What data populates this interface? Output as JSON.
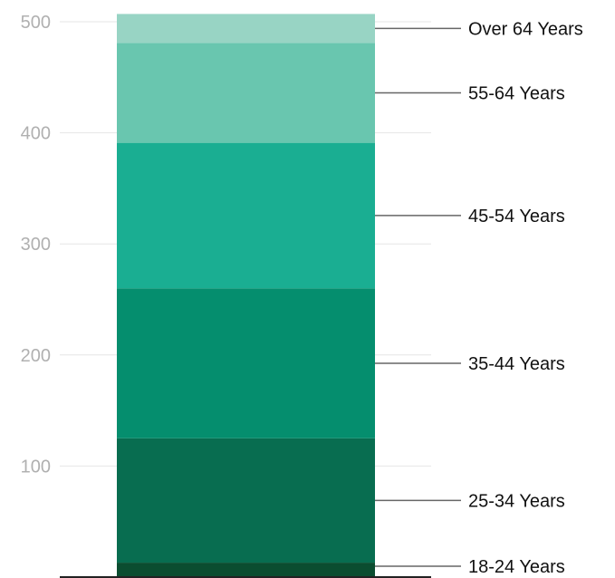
{
  "chart_data": {
    "type": "bar",
    "stacked": true,
    "categories": [
      ""
    ],
    "series": [
      {
        "name": "18-24 Years",
        "values": [
          13
        ],
        "color": "#0b4d30"
      },
      {
        "name": "25-34 Years",
        "values": [
          112
        ],
        "color": "#086d50"
      },
      {
        "name": "35-44 Years",
        "values": [
          135
        ],
        "color": "#058e6e"
      },
      {
        "name": "45-54 Years",
        "values": [
          131
        ],
        "color": "#1aae92"
      },
      {
        "name": "55-64 Years",
        "values": [
          90
        ],
        "color": "#69c6af"
      },
      {
        "name": "Over 64 Years",
        "values": [
          26
        ],
        "color": "#98d4c4"
      }
    ],
    "ylim": [
      0,
      500
    ],
    "yticks": [
      100,
      200,
      300,
      400,
      500
    ],
    "grid": true,
    "legend": "labels on right with leader lines",
    "title": "",
    "xlabel": "",
    "ylabel": ""
  }
}
